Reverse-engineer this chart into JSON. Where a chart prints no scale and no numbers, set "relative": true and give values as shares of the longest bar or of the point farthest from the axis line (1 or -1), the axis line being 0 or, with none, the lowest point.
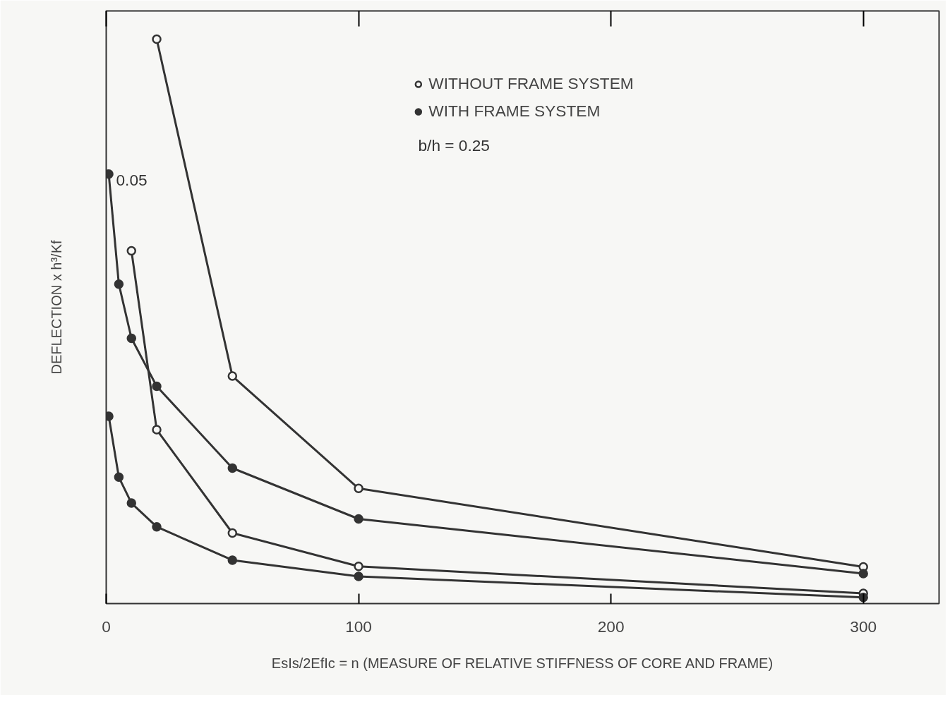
{
  "chart_data": {
    "type": "line",
    "xlabel": "EsIs/2EfIc = n (MEASURE OF RELATIVE STIFFNESS OF CORE AND FRAME)",
    "ylabel": "DEFLECTION x h³/Kf",
    "annotations": [
      "b/h = 0.25",
      "0.05"
    ],
    "relative": true,
    "xlim": [
      0,
      330
    ],
    "xticks": [
      0,
      100,
      200,
      300
    ],
    "legend": "top",
    "line_style": "solid",
    "series": [
      {
        "name": "WITHOUT FRAME SYSTEM",
        "color": "#333333",
        "marker": "circle_open",
        "x": [
          20,
          50,
          100,
          300
        ],
        "values": [
          1,
          0.403,
          0.204,
          0.065
        ]
      },
      {
        "name": "WITH FRAME SYSTEM",
        "color": "#333333",
        "marker": "circle",
        "x": [
          1,
          5,
          10,
          20,
          50,
          100,
          300
        ],
        "values": [
          0.761,
          0.566,
          0.47,
          0.385,
          0.24,
          0.15,
          0.053
        ]
      },
      {
        "color": "#333333",
        "marker": "circle_open",
        "x": [
          10,
          20,
          50,
          100,
          300
        ],
        "values": [
          0.625,
          0.308,
          0.125,
          0.066,
          0.018
        ]
      },
      {
        "color": "#333333",
        "marker": "circle",
        "x": [
          1,
          5,
          10,
          20,
          50,
          100,
          300
        ],
        "values": [
          0.332,
          0.224,
          0.178,
          0.136,
          0.077,
          0.048,
          0.011
        ]
      }
    ]
  }
}
